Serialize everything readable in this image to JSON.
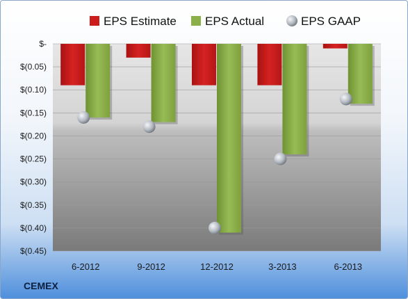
{
  "company": "CEMEX",
  "chart_data": {
    "type": "bar",
    "categories": [
      "6-2012",
      "9-2012",
      "12-2012",
      "3-2013",
      "6-2013"
    ],
    "series": [
      {
        "name": "EPS Estimate",
        "marker": "bar",
        "color": "#cc1c1c",
        "values": [
          -0.09,
          -0.03,
          -0.09,
          -0.09,
          -0.01
        ]
      },
      {
        "name": "EPS Actual",
        "marker": "bar",
        "color": "#8cb049",
        "values": [
          -0.16,
          -0.17,
          -0.41,
          -0.24,
          -0.13
        ]
      },
      {
        "name": "EPS GAAP",
        "marker": "circle",
        "color": "#b9c0c9",
        "values": [
          -0.16,
          -0.18,
          -0.4,
          -0.25,
          -0.12
        ]
      }
    ],
    "yticks": [
      0,
      -0.05,
      -0.1,
      -0.15,
      -0.2,
      -0.25,
      -0.3,
      -0.35,
      -0.4,
      -0.45
    ],
    "ytick_labels": [
      "$-",
      "$(0.05)",
      "$(0.10)",
      "$(0.15)",
      "$(0.20)",
      "$(0.25)",
      "$(0.30)",
      "$(0.35)",
      "$(0.40)",
      "$(0.45)"
    ],
    "ylim": [
      -0.45,
      0
    ],
    "legend_position": "top",
    "grid": true
  }
}
